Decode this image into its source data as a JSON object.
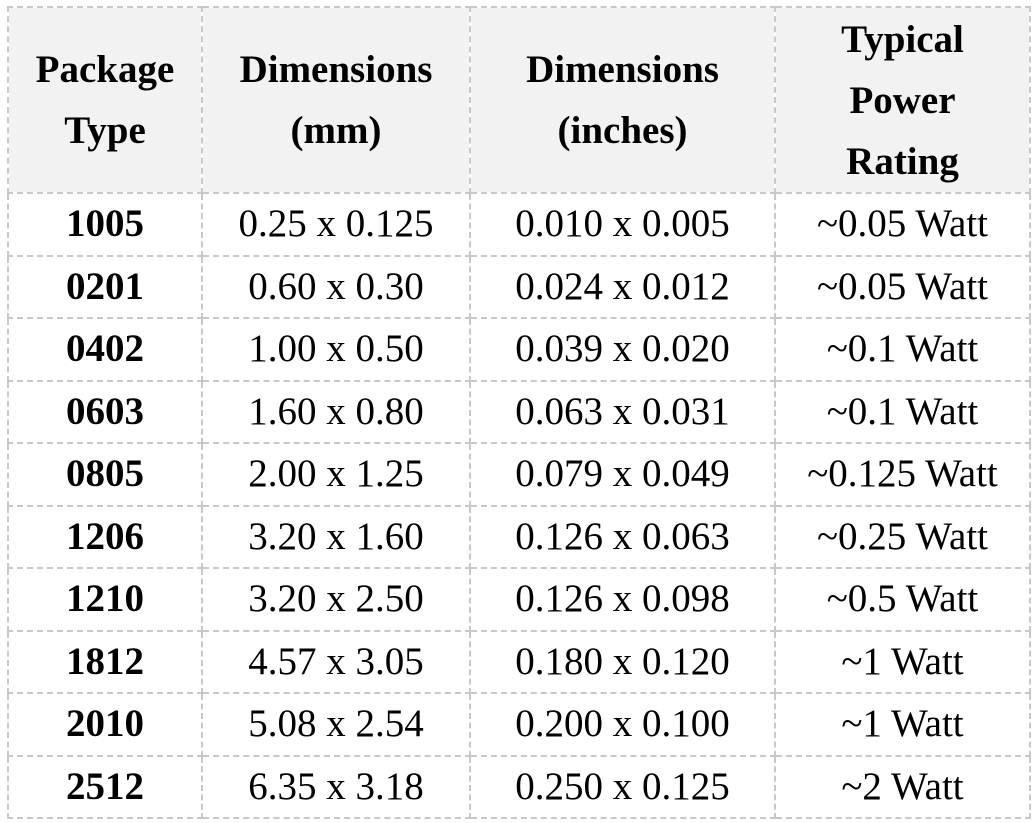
{
  "table": {
    "headers": [
      {
        "lines": [
          "Package",
          "Type"
        ]
      },
      {
        "lines": [
          "Dimensions",
          "(mm)"
        ]
      },
      {
        "lines": [
          "Dimensions",
          "(inches)"
        ]
      },
      {
        "lines": [
          "Typical",
          "Power",
          "Rating"
        ]
      }
    ],
    "rows": [
      {
        "package": "1005",
        "mm": "0.25 x 0.125",
        "inches": "0.010 x 0.005",
        "power": "~0.05 Watt"
      },
      {
        "package": "0201",
        "mm": "0.60 x 0.30",
        "inches": "0.024 x 0.012",
        "power": "~0.05 Watt"
      },
      {
        "package": "0402",
        "mm": "1.00 x 0.50",
        "inches": "0.039 x 0.020",
        "power": "~0.1 Watt"
      },
      {
        "package": "0603",
        "mm": "1.60 x 0.80",
        "inches": "0.063 x 0.031",
        "power": "~0.1 Watt"
      },
      {
        "package": "0805",
        "mm": "2.00 x 1.25",
        "inches": "0.079 x 0.049",
        "power": "~0.125 Watt"
      },
      {
        "package": "1206",
        "mm": "3.20 x 1.60",
        "inches": "0.126 x 0.063",
        "power": "~0.25 Watt"
      },
      {
        "package": "1210",
        "mm": "3.20 x 2.50",
        "inches": "0.126 x 0.098",
        "power": "~0.5 Watt"
      },
      {
        "package": "1812",
        "mm": "4.57 x 3.05",
        "inches": "0.180 x 0.120",
        "power": "~1 Watt"
      },
      {
        "package": "2010",
        "mm": "5.08 x 2.54",
        "inches": "0.200 x 0.100",
        "power": "~1 Watt"
      },
      {
        "package": "2512",
        "mm": "6.35 x 3.18",
        "inches": "0.250 x 0.125",
        "power": "~2 Watt"
      }
    ]
  },
  "colors": {
    "header_background": "#f2f2f2",
    "border": "#c8c8c8",
    "text": "#000000"
  }
}
